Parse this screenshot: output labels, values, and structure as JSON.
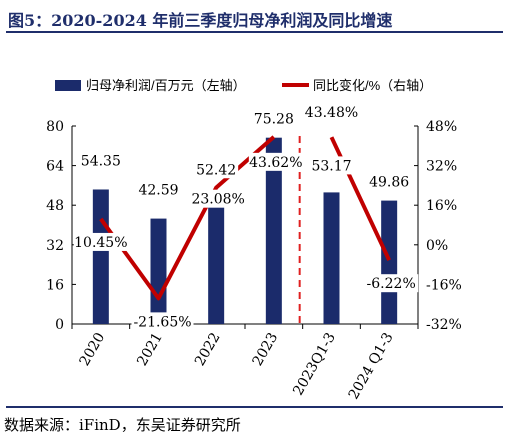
{
  "figure": {
    "title": "图5：2020-2024 年前三季度归母净利润及同比增速",
    "source": "数据来源：iFinD，东吴证券研究所"
  },
  "colors": {
    "bar": "#1b2b6b",
    "line": "#c00000",
    "divider": "#e02020",
    "title": "#1f2e6b"
  },
  "chart_data": {
    "type": "bar",
    "categories": [
      "2020",
      "2021",
      "2022",
      "2023",
      "2023Q1-3",
      "2024 Q1-3"
    ],
    "series": [
      {
        "name": "归母净利润/百万元（左轴）",
        "type": "bar",
        "axis": "left",
        "values": [
          54.35,
          42.59,
          52.42,
          75.28,
          53.17,
          49.86
        ],
        "labels": [
          "54.35",
          "42.59",
          "52.42",
          "75.28",
          "53.17",
          "49.86"
        ]
      },
      {
        "name": "同比变化/%（右轴）",
        "type": "line",
        "axis": "right",
        "values": [
          10.45,
          -21.65,
          23.08,
          43.62,
          43.48,
          -6.22
        ],
        "labels": [
          "10.45%",
          "-21.65%",
          "23.08%",
          "43.62%",
          "43.48%",
          "-6.22%"
        ],
        "segments": [
          [
            0,
            3
          ],
          [
            4,
            5
          ]
        ]
      }
    ],
    "y_left": {
      "min": 0,
      "max": 80,
      "ticks": [
        "0",
        "16",
        "32",
        "48",
        "64",
        "80"
      ]
    },
    "y_right": {
      "min": -32,
      "max": 48,
      "ticks": [
        "-32%",
        "-16%",
        "0%",
        "16%",
        "32%",
        "48%"
      ]
    },
    "divider_after_category": 3,
    "legend": "top",
    "grid": false
  }
}
